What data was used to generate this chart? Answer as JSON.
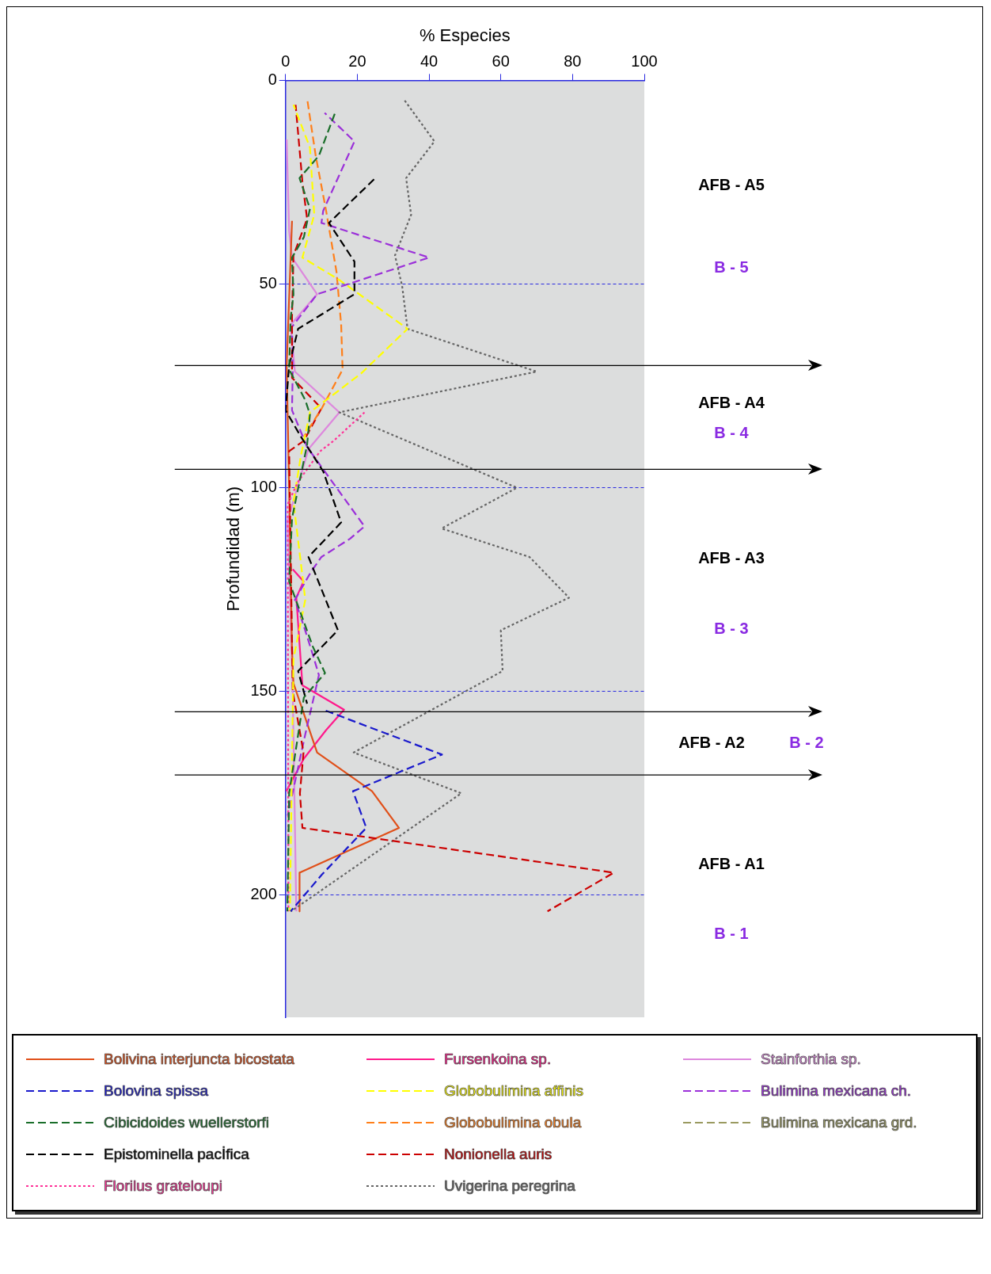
{
  "chart_data": {
    "type": "line",
    "xlabel": "% Especies",
    "ylabel": "Profundidad (m)",
    "xlim": [
      0,
      100
    ],
    "xticks": [
      0,
      20,
      40,
      60,
      80,
      100
    ],
    "ylim": [
      230,
      0
    ],
    "yticks": [
      0,
      50,
      100,
      150,
      200
    ],
    "grid": "y",
    "legend": "bottom",
    "marker": "none",
    "series": [
      {
        "name": "Bolivina interjuncta bicostata",
        "color": "#e0501a",
        "line_style": "solid",
        "x": [
          1.8,
          0.3,
          1,
          1.8,
          2.2,
          8.8,
          24.1,
          31.6,
          3.9,
          3.9
        ],
        "values": [
          34.5,
          70,
          100,
          140,
          148,
          165,
          174.5,
          183.5,
          194.5,
          204
        ]
      },
      {
        "name": "Bolovina spissa",
        "color": "#1a1acc",
        "line_style": "dashed",
        "x": [
          10.5,
          43.6,
          18.8,
          22.5,
          10.1,
          1.4
        ],
        "values": [
          154.5,
          165.5,
          174.5,
          183.5,
          195,
          204
        ]
      },
      {
        "name": "Cibicidoides wuellerstorfi",
        "color": "#1a6e2a",
        "line_style": "dashed",
        "x": [
          13.8,
          9.3,
          3.9,
          6.8,
          5.1,
          1.8,
          2.2,
          1.4,
          1,
          5.5,
          6.8,
          6,
          1.8,
          1,
          7.6,
          11,
          5.1,
          1,
          0.5
        ],
        "values": [
          8,
          18.5,
          24,
          31.5,
          38.5,
          43.5,
          52.5,
          58.5,
          71,
          78.5,
          82,
          89.5,
          107.5,
          123,
          139,
          145.5,
          151.5,
          175,
          204
        ]
      },
      {
        "name": "Epistominella pacİfica",
        "color": "#000000",
        "line_style": "dashed",
        "x": [
          25,
          12.1,
          19.2,
          19.2,
          3.5,
          1,
          0,
          4.3,
          10.5,
          15.5,
          6.4,
          14.6,
          3.5,
          6
        ],
        "values": [
          24,
          35,
          44.5,
          52.5,
          61,
          70,
          81,
          87.5,
          96,
          108.5,
          117,
          135,
          145,
          153
        ]
      },
      {
        "name": "Florilus grateloupi",
        "color": "#ff3399",
        "line_style": "dotted",
        "x": [
          22,
          13.4,
          9.7,
          3.5,
          0.6,
          0.8
        ],
        "values": [
          81.5,
          88.5,
          91,
          98.5,
          104,
          204
        ]
      },
      {
        "name": "Fursenkoina sp.",
        "color": "#ff1a8c",
        "line_style": "solid",
        "x": [
          2,
          5,
          3,
          4.7,
          16.3,
          11.3,
          5.1,
          0.2
        ],
        "values": [
          120,
          123,
          127,
          148.5,
          154.5,
          159.5,
          166.5,
          174.5
        ]
      },
      {
        "name": "Globobulimina affinis",
        "color": "#ffff00",
        "line_style": "dashed",
        "x": [
          2.2,
          6.8,
          8,
          4.7,
          15,
          34,
          21,
          6.8,
          4.3,
          2.2,
          5.5,
          2.2,
          1.2
        ],
        "values": [
          6,
          16.5,
          33,
          43.5,
          49,
          61,
          72,
          81.5,
          92,
          103.5,
          127.5,
          142,
          204
        ]
      },
      {
        "name": "Globobulimina obula",
        "color": "#ff7f1a",
        "line_style": "dashed",
        "x": [
          6.1,
          8.4,
          11.3,
          14.2,
          15.5,
          15.9,
          10.1,
          5.1
        ],
        "values": [
          5,
          18.5,
          32,
          47,
          60,
          71,
          80.5,
          87.5
        ]
      },
      {
        "name": "Nonionella auris",
        "color": "#cc0000",
        "line_style": "dashed",
        "x": [
          2.8,
          3.5,
          4.7,
          6,
          2.2,
          1.8,
          1.8,
          10,
          5.1,
          1,
          2,
          5,
          4,
          4.7,
          91.5,
          73
        ],
        "values": [
          6,
          13,
          25,
          34,
          43,
          58,
          73,
          80.5,
          88.5,
          91,
          150,
          165,
          175,
          183.5,
          194.5,
          204
        ]
      },
      {
        "name": "Uvigerina peregrina",
        "color": "#666666",
        "line_style": "dotted",
        "x": [
          33,
          41.5,
          33.6,
          35,
          30.5,
          32.5,
          34,
          70,
          15,
          64.5,
          43.5,
          68,
          79,
          60,
          60.5,
          19,
          49,
          1.5
        ],
        "values": [
          4.7,
          15,
          24,
          33,
          43,
          50.5,
          61,
          71.5,
          81.5,
          100,
          110,
          117,
          127,
          135,
          145,
          165,
          175,
          204
        ]
      },
      {
        "name": "Stainforthia sp.",
        "color": "#dd88dd",
        "line_style": "solid",
        "x": [
          0.3,
          1,
          1.8,
          8.8,
          1.4,
          2.6,
          15,
          6.4,
          0.6,
          2,
          3
        ],
        "values": [
          14.5,
          37,
          43.5,
          52.5,
          60,
          71.5,
          81.5,
          90.5,
          108,
          150,
          204
        ]
      },
      {
        "name": "Bulimina mexicana ch.",
        "color": "#9b30d9",
        "line_style": "dashed",
        "x": [
          10.9,
          19.2,
          10.5,
          10,
          40,
          17.5,
          8.8,
          1.8,
          2,
          1.8,
          6,
          22,
          18,
          10,
          7.2,
          2.6,
          5.1,
          7.6,
          9.3,
          5.5,
          0.6
        ],
        "values": [
          8,
          15,
          32,
          35,
          43.5,
          50,
          52.5,
          60.5,
          71,
          81,
          90,
          109.5,
          112.5,
          117,
          120.5,
          127.5,
          134,
          141,
          146,
          160.5,
          180.5
        ]
      },
      {
        "name": "Bulimina mexicana grd.",
        "color": "#9a9a60",
        "line_style": "dashed",
        "x": [
          null
        ],
        "values": [
          null
        ]
      }
    ],
    "ref_lines": [
      {
        "axis": "y",
        "value": 70
      },
      {
        "axis": "y",
        "value": 95.5
      },
      {
        "axis": "y",
        "value": 155
      },
      {
        "axis": "y",
        "value": 170.5
      }
    ],
    "annotations": [
      "AFB - A5",
      "B - 5",
      "AFB - A4",
      "B - 4",
      "AFB - A3",
      "B - 3",
      "AFB - A2",
      "B - 2",
      "AFB - A1",
      "B - 1"
    ]
  }
}
